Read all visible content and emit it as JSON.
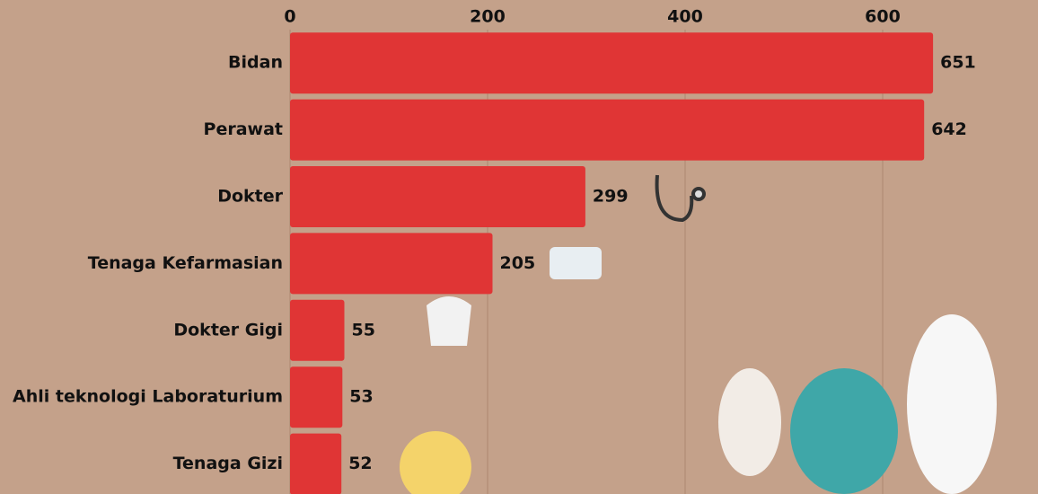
{
  "chart_data": {
    "type": "bar",
    "orientation": "horizontal",
    "categories": [
      "Bidan",
      "Perawat",
      "Dokter",
      "Tenaga Kefarmasian",
      "Dokter Gigi",
      "Ahli teknologi Laboraturium",
      "Tenaga Gizi"
    ],
    "values": [
      651,
      642,
      299,
      205,
      55,
      53,
      52
    ],
    "color": "#e03535",
    "xlim": [
      0,
      750
    ],
    "xticks": [
      0,
      200,
      400,
      600
    ],
    "grid": true
  }
}
